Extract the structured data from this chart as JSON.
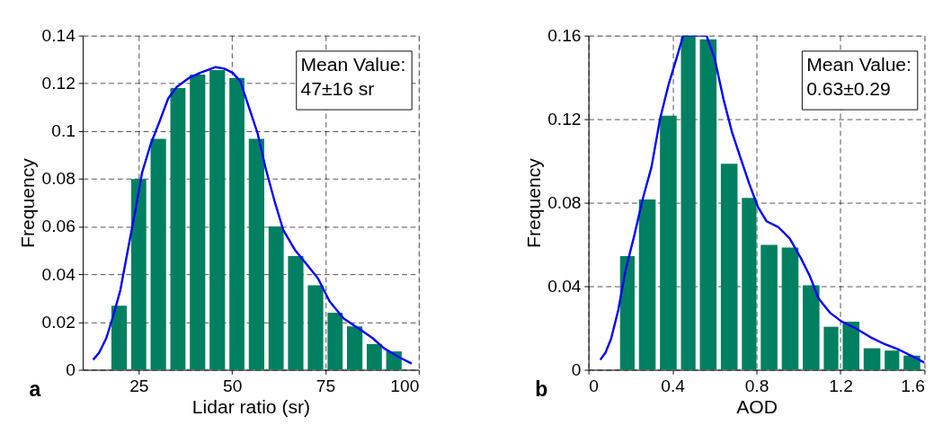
{
  "chart_data": [
    {
      "type": "histogram",
      "xlabel": "Lidar ratio (sr)",
      "ylabel": "Frequency",
      "annotations": [
        "a",
        "Mean Value:\n47±16 sr"
      ],
      "bins": [
        17.1,
        22.4,
        27.6,
        32.9,
        38.1,
        43.4,
        48.7,
        53.9,
        59.2,
        64.4,
        69.7,
        75.0,
        80.2,
        85.5,
        90.7,
        96.0
      ],
      "values": [
        0.0268,
        0.0799,
        0.0968,
        0.118,
        0.1237,
        0.1256,
        0.1223,
        0.0968,
        0.0601,
        0.0476,
        0.0354,
        0.0239,
        0.0182,
        0.0108,
        0.0077
      ],
      "color": "#008060",
      "series": [
        {
          "type": "line",
          "color": "#0000ff",
          "x": [
            12.8,
            14.4,
            16.3,
            18.2,
            20.1,
            22.1,
            24.0,
            25.9,
            28.2,
            30.6,
            32.9,
            35.2,
            38.3,
            41.4,
            45.6,
            47.9,
            50.2,
            52.2,
            54.5,
            56.8,
            59.1,
            61.4,
            63.7,
            66.8,
            69.9,
            73.0,
            76.1,
            79.9,
            83.8,
            87.7,
            90.7,
            94.6,
            98.1
          ],
          "values": [
            0.0042,
            0.0072,
            0.0132,
            0.0227,
            0.0335,
            0.0503,
            0.0658,
            0.0826,
            0.0945,
            0.1041,
            0.1137,
            0.1185,
            0.1221,
            0.1244,
            0.1268,
            0.1262,
            0.1244,
            0.1209,
            0.1101,
            0.0993,
            0.0838,
            0.0706,
            0.0586,
            0.0503,
            0.0443,
            0.0383,
            0.0287,
            0.0215,
            0.0174,
            0.0132,
            0.009,
            0.0054,
            0.0026
          ]
        }
      ],
      "xlim": [
        10,
        100
      ],
      "xticks": [
        25,
        50,
        75,
        100
      ],
      "ylim": [
        0,
        0.14
      ],
      "yticks": [
        0,
        0.02,
        0.04,
        0.06,
        0.08,
        0.1,
        0.12,
        0.14
      ],
      "grid": true
    },
    {
      "type": "histogram",
      "xlabel": "AOD",
      "ylabel": "Frequency",
      "annotations": [
        "b",
        "Mean Value:\n0.63±0.29"
      ],
      "bins": [
        0.14,
        0.23,
        0.33,
        0.43,
        0.52,
        0.62,
        0.72,
        0.81,
        0.91,
        1.01,
        1.11,
        1.2,
        1.3,
        1.4,
        1.49,
        1.59
      ],
      "values": [
        0.0544,
        0.0815,
        0.1217,
        0.16,
        0.1582,
        0.0987,
        0.0823,
        0.0598,
        0.0585,
        0.0405,
        0.0206,
        0.023,
        0.0103,
        0.0092,
        0.0068
      ],
      "color": "#008060",
      "series": [
        {
          "type": "line",
          "color": "#0000ff",
          "x": [
            0.056,
            0.081,
            0.108,
            0.142,
            0.177,
            0.218,
            0.259,
            0.3,
            0.341,
            0.382,
            0.423,
            0.451,
            0.562,
            0.601,
            0.642,
            0.684,
            0.725,
            0.766,
            0.807,
            0.848,
            0.903,
            0.958,
            1.012,
            1.053,
            1.095,
            1.149,
            1.204,
            1.273,
            1.341,
            1.41,
            1.479,
            1.547,
            1.6
          ],
          "values": [
            0.0048,
            0.0082,
            0.015,
            0.0287,
            0.0479,
            0.0643,
            0.0821,
            0.0971,
            0.1203,
            0.1368,
            0.1504,
            0.16,
            0.16,
            0.149,
            0.1299,
            0.1135,
            0.1012,
            0.0889,
            0.0779,
            0.0711,
            0.0684,
            0.0629,
            0.0533,
            0.0451,
            0.0342,
            0.0274,
            0.0232,
            0.0198,
            0.0157,
            0.0123,
            0.0096,
            0.0062,
            0.0034
          ]
        }
      ],
      "xlim": [
        0,
        1.6
      ],
      "xticks": [
        0,
        0.4,
        0.8,
        1.2,
        1.6
      ],
      "ylim": [
        0,
        0.16
      ],
      "yticks": [
        0,
        0.04,
        0.08,
        0.12,
        0.16
      ],
      "grid": true
    }
  ]
}
